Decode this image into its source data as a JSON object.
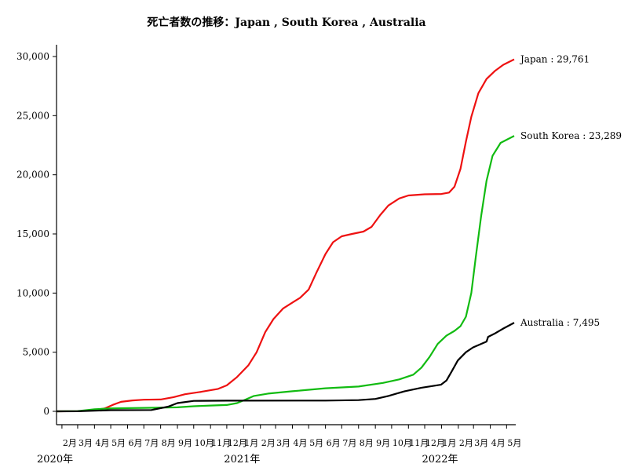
{
  "chart_data": {
    "type": "line",
    "title": "死亡者数の推移：Japan , South Korea , Australia",
    "xlabel": "",
    "ylabel": "",
    "x_range": [
      "2020-01-22",
      "2022-05-15"
    ],
    "ylim": [
      0,
      30000
    ],
    "y_ticks": [
      0,
      5000,
      10000,
      15000,
      20000,
      25000,
      30000
    ],
    "y_tick_labels": [
      "0",
      "5,000",
      "10,000",
      "15,000",
      "20,000",
      "25,000",
      "30,000"
    ],
    "x_ticks": [
      {
        "date": "2020-02-01",
        "label": "2月"
      },
      {
        "date": "2020-03-01",
        "label": "3月"
      },
      {
        "date": "2020-04-01",
        "label": "4月"
      },
      {
        "date": "2020-05-01",
        "label": "5月"
      },
      {
        "date": "2020-06-01",
        "label": "6月"
      },
      {
        "date": "2020-07-01",
        "label": "7月"
      },
      {
        "date": "2020-08-01",
        "label": "8月"
      },
      {
        "date": "2020-09-01",
        "label": "9月"
      },
      {
        "date": "2020-10-01",
        "label": "10月"
      },
      {
        "date": "2020-11-01",
        "label": "11月"
      },
      {
        "date": "2020-12-01",
        "label": "12月"
      },
      {
        "date": "2021-01-01",
        "label": "1月"
      },
      {
        "date": "2021-02-01",
        "label": "2月"
      },
      {
        "date": "2021-03-01",
        "label": "3月"
      },
      {
        "date": "2021-04-01",
        "label": "4月"
      },
      {
        "date": "2021-05-01",
        "label": "5月"
      },
      {
        "date": "2021-06-01",
        "label": "6月"
      },
      {
        "date": "2021-07-01",
        "label": "7月"
      },
      {
        "date": "2021-08-01",
        "label": "8月"
      },
      {
        "date": "2021-09-01",
        "label": "9月"
      },
      {
        "date": "2021-10-01",
        "label": "10月"
      },
      {
        "date": "2021-11-01",
        "label": "11月"
      },
      {
        "date": "2021-12-01",
        "label": "12月"
      },
      {
        "date": "2022-01-01",
        "label": "1月"
      },
      {
        "date": "2022-02-01",
        "label": "2月"
      },
      {
        "date": "2022-03-01",
        "label": "3月"
      },
      {
        "date": "2022-04-01",
        "label": "4月"
      },
      {
        "date": "2022-05-01",
        "label": "5月"
      }
    ],
    "year_labels": [
      {
        "date": "2020-01-22",
        "label": "2020年"
      },
      {
        "date": "2021-01-01",
        "label": "2021年"
      },
      {
        "date": "2022-01-01",
        "label": "2022年"
      }
    ],
    "grid": false,
    "series": [
      {
        "name": "Japan",
        "end_label": "Japan : 29,761",
        "color": "#ee1111",
        "points": [
          [
            "2020-01-22",
            0
          ],
          [
            "2020-03-01",
            10
          ],
          [
            "2020-04-01",
            100
          ],
          [
            "2020-04-20",
            250
          ],
          [
            "2020-05-05",
            550
          ],
          [
            "2020-05-20",
            800
          ],
          [
            "2020-06-10",
            920
          ],
          [
            "2020-07-01",
            980
          ],
          [
            "2020-08-01",
            1000
          ],
          [
            "2020-08-25",
            1200
          ],
          [
            "2020-09-15",
            1450
          ],
          [
            "2020-10-15",
            1650
          ],
          [
            "2020-11-15",
            1900
          ],
          [
            "2020-12-01",
            2200
          ],
          [
            "2020-12-20",
            2900
          ],
          [
            "2021-01-10",
            3900
          ],
          [
            "2021-01-25",
            5000
          ],
          [
            "2021-02-10",
            6700
          ],
          [
            "2021-02-25",
            7800
          ],
          [
            "2021-03-15",
            8700
          ],
          [
            "2021-04-01",
            9200
          ],
          [
            "2021-04-15",
            9600
          ],
          [
            "2021-05-01",
            10300
          ],
          [
            "2021-05-15",
            11700
          ],
          [
            "2021-06-01",
            13300
          ],
          [
            "2021-06-15",
            14300
          ],
          [
            "2021-07-01",
            14800
          ],
          [
            "2021-07-20",
            15000
          ],
          [
            "2021-08-10",
            15200
          ],
          [
            "2021-08-25",
            15600
          ],
          [
            "2021-09-10",
            16600
          ],
          [
            "2021-09-25",
            17400
          ],
          [
            "2021-10-15",
            18000
          ],
          [
            "2021-11-01",
            18250
          ],
          [
            "2021-12-01",
            18350
          ],
          [
            "2022-01-01",
            18380
          ],
          [
            "2022-01-15",
            18500
          ],
          [
            "2022-01-25",
            19000
          ],
          [
            "2022-02-05",
            20500
          ],
          [
            "2022-02-15",
            22800
          ],
          [
            "2022-02-25",
            24900
          ],
          [
            "2022-03-10",
            26900
          ],
          [
            "2022-03-25",
            28100
          ],
          [
            "2022-04-10",
            28800
          ],
          [
            "2022-04-25",
            29300
          ],
          [
            "2022-05-15",
            29761
          ]
        ]
      },
      {
        "name": "South Korea",
        "end_label": "South Korea : 23,289",
        "color": "#11bb11",
        "points": [
          [
            "2020-01-22",
            0
          ],
          [
            "2020-03-01",
            20
          ],
          [
            "2020-04-01",
            170
          ],
          [
            "2020-05-01",
            250
          ],
          [
            "2020-07-01",
            290
          ],
          [
            "2020-09-01",
            340
          ],
          [
            "2020-10-01",
            430
          ],
          [
            "2020-11-01",
            490
          ],
          [
            "2020-12-01",
            540
          ],
          [
            "2020-12-20",
            700
          ],
          [
            "2021-01-05",
            1000
          ],
          [
            "2021-01-20",
            1300
          ],
          [
            "2021-02-15",
            1500
          ],
          [
            "2021-04-01",
            1700
          ],
          [
            "2021-06-01",
            1950
          ],
          [
            "2021-08-01",
            2100
          ],
          [
            "2021-09-15",
            2400
          ],
          [
            "2021-10-15",
            2700
          ],
          [
            "2021-11-10",
            3100
          ],
          [
            "2021-11-25",
            3700
          ],
          [
            "2021-12-10",
            4600
          ],
          [
            "2021-12-25",
            5700
          ],
          [
            "2022-01-10",
            6400
          ],
          [
            "2022-01-25",
            6800
          ],
          [
            "2022-02-05",
            7200
          ],
          [
            "2022-02-15",
            8000
          ],
          [
            "2022-02-25",
            10000
          ],
          [
            "2022-03-05",
            13000
          ],
          [
            "2022-03-15",
            16500
          ],
          [
            "2022-03-25",
            19500
          ],
          [
            "2022-04-05",
            21600
          ],
          [
            "2022-04-20",
            22700
          ],
          [
            "2022-05-15",
            23289
          ]
        ]
      },
      {
        "name": "Australia",
        "end_label": "Australia : 7,495",
        "color": "#000000",
        "points": [
          [
            "2020-01-22",
            0
          ],
          [
            "2020-03-01",
            5
          ],
          [
            "2020-04-01",
            50
          ],
          [
            "2020-05-01",
            100
          ],
          [
            "2020-07-15",
            110
          ],
          [
            "2020-08-15",
            400
          ],
          [
            "2020-09-01",
            700
          ],
          [
            "2020-10-01",
            880
          ],
          [
            "2020-12-01",
            905
          ],
          [
            "2021-06-01",
            910
          ],
          [
            "2021-08-01",
            950
          ],
          [
            "2021-09-01",
            1050
          ],
          [
            "2021-09-25",
            1300
          ],
          [
            "2021-10-25",
            1700
          ],
          [
            "2021-11-25",
            2000
          ],
          [
            "2021-12-31",
            2250
          ],
          [
            "2022-01-10",
            2600
          ],
          [
            "2022-01-20",
            3400
          ],
          [
            "2022-01-31",
            4300
          ],
          [
            "2022-02-15",
            5000
          ],
          [
            "2022-02-28",
            5400
          ],
          [
            "2022-03-15",
            5700
          ],
          [
            "2022-03-25",
            5900
          ],
          [
            "2022-03-28",
            6300
          ],
          [
            "2022-04-10",
            6600
          ],
          [
            "2022-04-25",
            7000
          ],
          [
            "2022-05-15",
            7495
          ]
        ]
      }
    ]
  }
}
